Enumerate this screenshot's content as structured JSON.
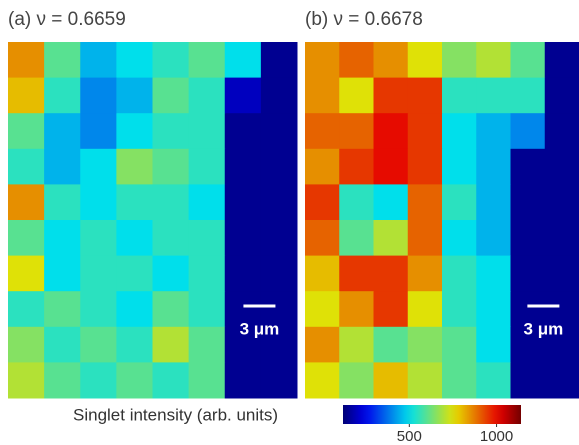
{
  "chart_data": [
    {
      "type": "heatmap",
      "title": "(a) ν = 0.6659",
      "scale_bar": "3 μm",
      "values": [
        [
          850,
          600,
          450,
          500,
          550,
          600,
          500,
          150
        ],
        [
          800,
          550,
          400,
          450,
          600,
          550,
          200,
          150
        ],
        [
          600,
          450,
          400,
          500,
          550,
          550,
          150,
          150
        ],
        [
          550,
          450,
          500,
          650,
          600,
          550,
          150,
          150
        ],
        [
          850,
          550,
          500,
          550,
          550,
          500,
          150,
          150
        ],
        [
          600,
          500,
          550,
          500,
          550,
          550,
          150,
          150
        ],
        [
          750,
          500,
          550,
          550,
          500,
          550,
          150,
          150
        ],
        [
          550,
          600,
          550,
          500,
          600,
          550,
          150,
          150
        ],
        [
          650,
          550,
          600,
          550,
          700,
          600,
          150,
          150
        ],
        [
          700,
          600,
          550,
          600,
          550,
          600,
          150,
          150
        ]
      ]
    },
    {
      "type": "heatmap",
      "title": "(b) ν = 0.6678",
      "scale_bar": "3 μm",
      "values": [
        [
          850,
          900,
          850,
          750,
          650,
          700,
          600,
          150
        ],
        [
          850,
          750,
          950,
          950,
          550,
          550,
          550,
          150
        ],
        [
          900,
          900,
          1000,
          950,
          500,
          450,
          400,
          150
        ],
        [
          850,
          950,
          1000,
          950,
          500,
          450,
          150,
          150
        ],
        [
          950,
          550,
          500,
          900,
          550,
          450,
          150,
          150
        ],
        [
          900,
          600,
          700,
          900,
          500,
          450,
          150,
          150
        ],
        [
          800,
          950,
          950,
          850,
          550,
          500,
          150,
          150
        ],
        [
          750,
          850,
          950,
          750,
          550,
          500,
          150,
          150
        ],
        [
          850,
          700,
          600,
          650,
          600,
          500,
          150,
          150
        ],
        [
          750,
          650,
          800,
          700,
          600,
          550,
          150,
          150
        ]
      ]
    }
  ],
  "colorbar": {
    "label": "Singlet intensity (arb. units)",
    "colormap": "jet",
    "clim": [
      120,
      1140
    ],
    "ticks": [
      500,
      1000
    ]
  }
}
